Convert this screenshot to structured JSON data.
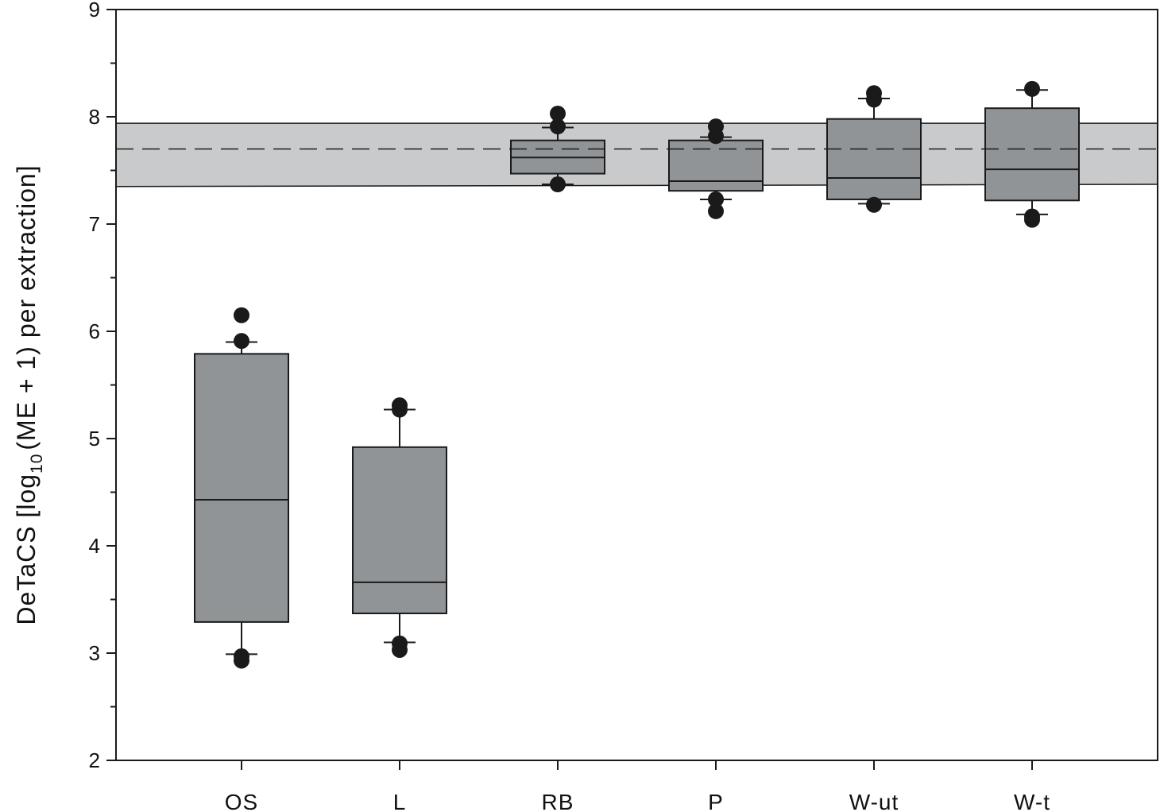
{
  "chart_data": {
    "type": "box",
    "ylabel": {
      "main": "DeTaCS  [log",
      "sub": "10",
      "rest": "(ME + 1) per extraction]"
    },
    "ylim": [
      2,
      9
    ],
    "yticks": [
      2,
      3,
      4,
      5,
      6,
      7,
      8,
      9
    ],
    "minor_step": 0.5,
    "categories": [
      "OS",
      "L",
      "RB",
      "P",
      "W-ut",
      "W-t"
    ],
    "boxes": [
      {
        "category": "OS",
        "q1": 3.29,
        "median": 4.43,
        "q3": 5.79,
        "whisker_low": 2.99,
        "whisker_high": 5.9,
        "outliers": [
          6.15,
          5.91,
          2.97,
          2.93
        ]
      },
      {
        "category": "L",
        "q1": 3.37,
        "median": 3.66,
        "q3": 4.92,
        "whisker_low": 3.1,
        "whisker_high": 5.27,
        "outliers": [
          5.31,
          5.27,
          3.09,
          3.03
        ]
      },
      {
        "category": "RB",
        "q1": 7.47,
        "median": 7.62,
        "q3": 7.78,
        "whisker_low": 7.37,
        "whisker_high": 7.9,
        "outliers": [
          8.03,
          7.91,
          7.37
        ]
      },
      {
        "category": "P",
        "q1": 7.31,
        "median": 7.4,
        "q3": 7.78,
        "whisker_low": 7.23,
        "whisker_high": 7.81,
        "outliers": [
          7.91,
          7.82,
          7.23,
          7.12
        ]
      },
      {
        "category": "W-ut",
        "q1": 7.23,
        "median": 7.43,
        "q3": 7.98,
        "whisker_low": 7.19,
        "whisker_high": 8.17,
        "outliers": [
          8.22,
          8.16,
          7.18
        ]
      },
      {
        "category": "W-t",
        "q1": 7.22,
        "median": 7.51,
        "q3": 8.08,
        "whisker_low": 7.09,
        "whisker_high": 8.25,
        "outliers": [
          8.26,
          7.07,
          7.04
        ]
      }
    ],
    "reference_band": {
      "low_left": 7.35,
      "low_right": 7.37,
      "high": 7.94,
      "mean": 7.7
    },
    "colors": {
      "box_fill": "#909497",
      "band_fill": "#c9cacb",
      "line": "#1a1a1a",
      "point": "#1a1a1a"
    }
  }
}
